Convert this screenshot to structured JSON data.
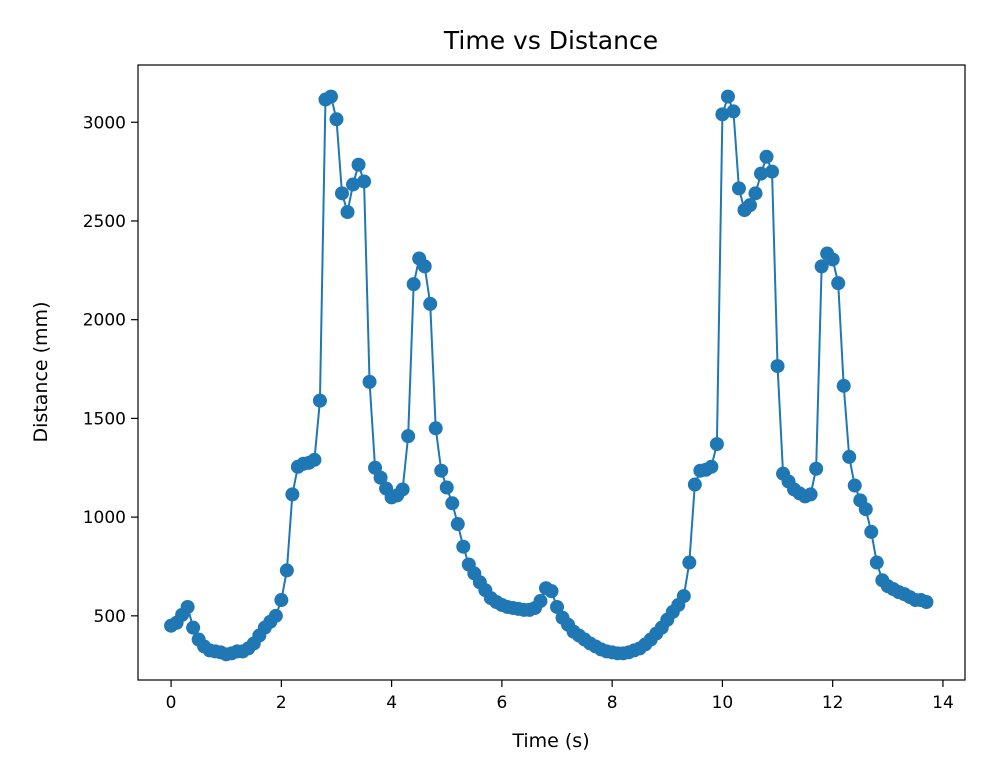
{
  "chart_data": {
    "type": "line",
    "title": "Time vs Distance",
    "xlabel": "Time (s)",
    "ylabel": "Distance (mm)",
    "xlim": [
      -0.6,
      14.4
    ],
    "ylim": [
      175,
      3290
    ],
    "xticks": [
      0,
      2,
      4,
      6,
      8,
      10,
      12,
      14
    ],
    "yticks": [
      500,
      1000,
      1500,
      2000,
      2500,
      3000
    ],
    "grid": false,
    "marker": "circle",
    "color": "#1f77b4",
    "series": [
      {
        "x": [
          0.0,
          0.1,
          0.2,
          0.3,
          0.4,
          0.5,
          0.6,
          0.7,
          0.8,
          0.9,
          1.0,
          1.1,
          1.2,
          1.3,
          1.4,
          1.5,
          1.6,
          1.7,
          1.8,
          1.9,
          2.0,
          2.1,
          2.2,
          2.3,
          2.4,
          2.5,
          2.6,
          2.7,
          2.8,
          2.9,
          3.0,
          3.1,
          3.2,
          3.3,
          3.4,
          3.5,
          3.6,
          3.7,
          3.8,
          3.9,
          4.0,
          4.1,
          4.2,
          4.3,
          4.4,
          4.5,
          4.6,
          4.7,
          4.8,
          4.9,
          5.0,
          5.1,
          5.2,
          5.3,
          5.4,
          5.5,
          5.6,
          5.7,
          5.8,
          5.9,
          6.0,
          6.1,
          6.2,
          6.3,
          6.4,
          6.5,
          6.6,
          6.7,
          6.8,
          6.9,
          7.0,
          7.1,
          7.2,
          7.3,
          7.4,
          7.5,
          7.6,
          7.7,
          7.8,
          7.9,
          8.0,
          8.1,
          8.2,
          8.3,
          8.4,
          8.5,
          8.6,
          8.7,
          8.8,
          8.9,
          9.0,
          9.1,
          9.2,
          9.3,
          9.4,
          9.5,
          9.6,
          9.7,
          9.8,
          9.9,
          10.0,
          10.1,
          10.2,
          10.3,
          10.4,
          10.5,
          10.6,
          10.7,
          10.8,
          10.9,
          11.0,
          11.1,
          11.2,
          11.3,
          11.4,
          11.5,
          11.6,
          11.7,
          11.8,
          11.9,
          12.0,
          12.1,
          12.2,
          12.3,
          12.4,
          12.5,
          12.6,
          12.7,
          12.8,
          12.9,
          13.0,
          13.1,
          13.2,
          13.3,
          13.4,
          13.5,
          13.6,
          13.7
        ],
        "y": [
          450,
          465,
          505,
          545,
          440,
          380,
          345,
          325,
          320,
          315,
          305,
          310,
          320,
          320,
          335,
          360,
          400,
          440,
          470,
          500,
          580,
          730,
          1115,
          1255,
          1270,
          1275,
          1290,
          1590,
          3115,
          3130,
          3015,
          2640,
          2545,
          2685,
          2785,
          2700,
          1685,
          1250,
          1200,
          1145,
          1100,
          1110,
          1140,
          1410,
          2180,
          2310,
          2270,
          2080,
          1450,
          1235,
          1150,
          1070,
          965,
          850,
          760,
          715,
          670,
          630,
          590,
          570,
          555,
          545,
          540,
          535,
          530,
          530,
          540,
          575,
          640,
          625,
          545,
          490,
          455,
          420,
          400,
          380,
          360,
          345,
          330,
          320,
          315,
          310,
          310,
          315,
          325,
          335,
          355,
          380,
          410,
          440,
          480,
          520,
          555,
          600,
          770,
          1165,
          1235,
          1240,
          1255,
          1370,
          3040,
          3130,
          3055,
          2665,
          2555,
          2580,
          2640,
          2740,
          2825,
          2750,
          1765,
          1220,
          1180,
          1140,
          1120,
          1105,
          1115,
          1245,
          2270,
          2335,
          2305,
          2185,
          1665,
          1305,
          1160,
          1085,
          1040,
          925,
          770,
          680,
          650,
          635,
          620,
          610,
          595,
          580,
          580,
          570
        ]
      }
    ]
  }
}
